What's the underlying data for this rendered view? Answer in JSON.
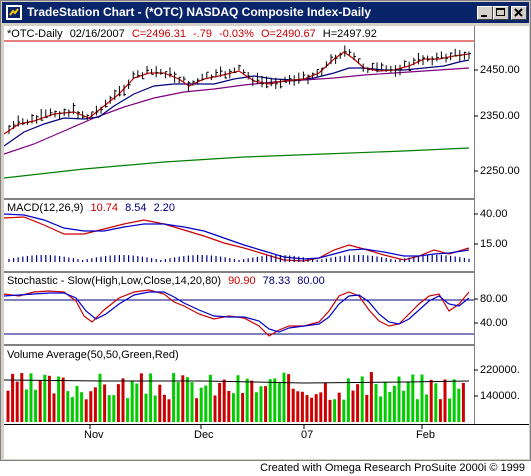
{
  "window": {
    "title": "TradeStation Chart - (*OTC) NASDAQ Composite Index-Daily",
    "icon": "tradestation-logo-icon",
    "buttons": [
      "minimize-icon",
      "maximize-icon",
      "close-icon"
    ]
  },
  "price_panel": {
    "symbol": "*OTC-Daily",
    "date": "02/16/2007",
    "close": "C=2496.31",
    "change": "-.79",
    "change_pct": "-0.03%",
    "open": "O=2490.67",
    "high": "H=2497.92",
    "y_ticks": [
      "2450.00",
      "2350.00",
      "2250.00"
    ]
  },
  "macd_panel": {
    "label": "MACD(12,26,9)",
    "v1": "10.74",
    "v2": "8.54",
    "v3": "2.20",
    "y_ticks": [
      "40.00",
      "15.00"
    ]
  },
  "stoch_panel": {
    "label": "Stochastic - Slow(High,Low,Close,14,20,80)",
    "v1": "90.90",
    "v2": "78.33",
    "v3": "80.00",
    "y_ticks": [
      "80.00",
      "40.00"
    ]
  },
  "volume_panel": {
    "label": "Volume Average(50,50,Green,Red)",
    "y_ticks": [
      "220000.",
      "140000."
    ]
  },
  "x_axis": {
    "labels": [
      "Nov",
      "Dec",
      "07",
      "Feb"
    ]
  },
  "footer": {
    "text": "Created with Omega Research ProSuite 2000i © 1999"
  },
  "colors": {
    "title_bg": "#0a246a",
    "price_red": "#cc0000",
    "ma_blue": "#000080",
    "ma_purple": "#800080",
    "ma_green": "#008000",
    "macd_red": "#cc0000",
    "macd_blue": "#0000cc",
    "stoch_red": "#cc0000",
    "stoch_blue": "#0000cc",
    "vol_green": "#00cc00",
    "vol_red": "#cc0000",
    "neutral_dark": "#000080"
  }
}
